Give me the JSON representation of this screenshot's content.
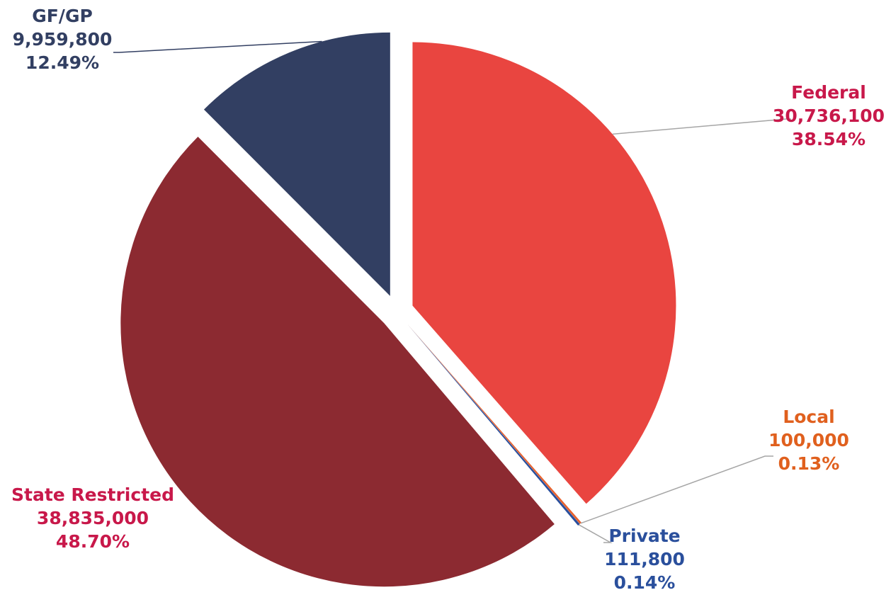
{
  "chart_data": {
    "type": "pie",
    "title": "",
    "slices": [
      {
        "name": "Federal",
        "value": 30736100,
        "value_label": "30,736,100",
        "percent": 38.54,
        "percent_label": "38.54%",
        "color": "#e94540",
        "label_color": "#c8184a"
      },
      {
        "name": "Local",
        "value": 100000,
        "value_label": "100,000",
        "percent": 0.13,
        "percent_label": "0.13%",
        "color": "#e8612c",
        "label_color": "#e0601e"
      },
      {
        "name": "Private",
        "value": 111800,
        "value_label": "111,800",
        "percent": 0.14,
        "percent_label": "0.14%",
        "color": "#2a4f9c",
        "label_color": "#2a4f9c"
      },
      {
        "name": "State Restricted",
        "value": 38835000,
        "value_label": "38,835,000",
        "percent": 48.7,
        "percent_label": "48.70%",
        "color": "#8c2a31",
        "label_color": "#c8184a"
      },
      {
        "name": "GF/GP",
        "value": 9959800,
        "value_label": "9,959,800",
        "percent": 12.49,
        "percent_label": "12.49%",
        "color": "#323f62",
        "label_color": "#323f62"
      }
    ],
    "legend": "none",
    "exploded": true
  }
}
